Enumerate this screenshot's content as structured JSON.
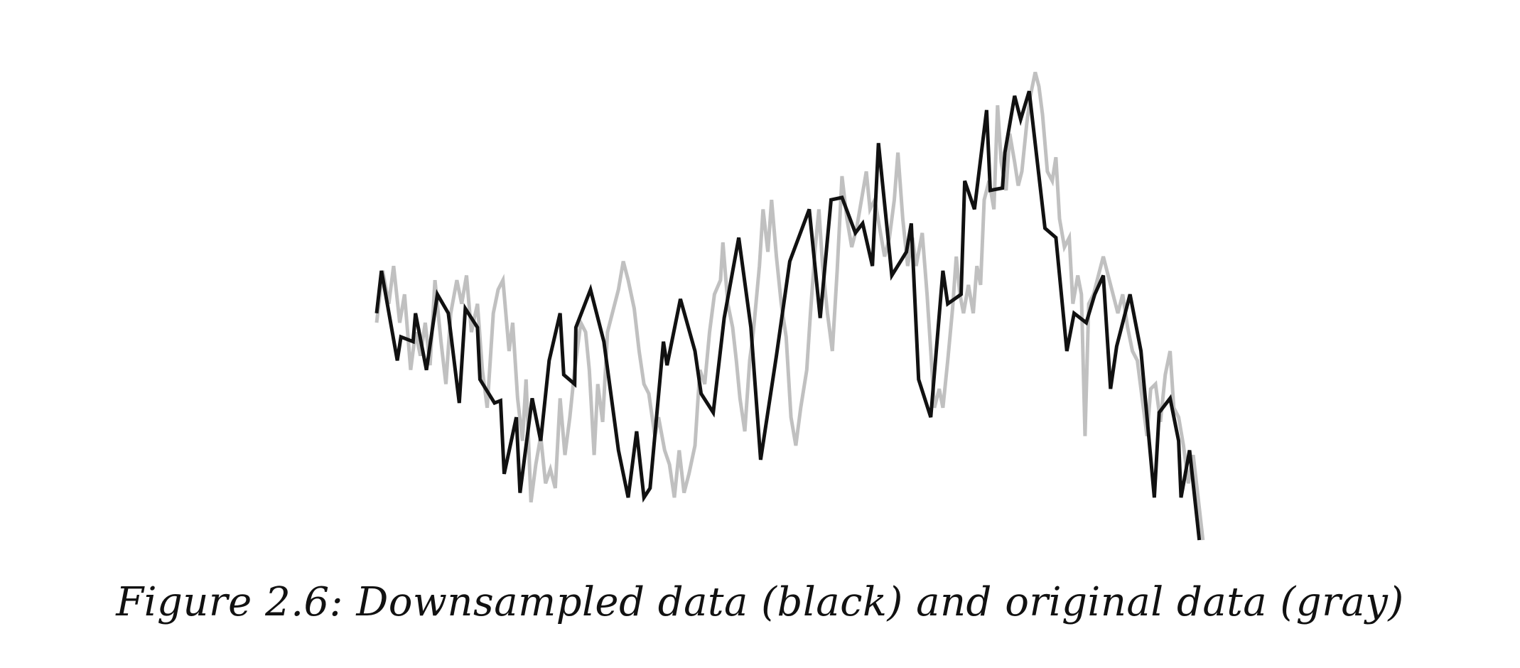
{
  "caption": "Figure 2.6: Downsampled data (black) and original data (gray)",
  "chart_data": {
    "type": "line",
    "title": "",
    "xlabel": "",
    "ylabel": "",
    "axes_visible": false,
    "grid": false,
    "legend": "none",
    "xlim": [
      0,
      100
    ],
    "ylim": [
      0,
      100
    ],
    "series": [
      {
        "color": "#c0c0c0",
        "width": 5,
        "style": "original",
        "points": [
          [
            0.0,
            46.0
          ],
          [
            0.5,
            57.0
          ],
          [
            1.0,
            50.0
          ],
          [
            1.4,
            58.0
          ],
          [
            1.9,
            46.0
          ],
          [
            2.3,
            52.0
          ],
          [
            2.8,
            36.0
          ],
          [
            3.2,
            44.0
          ],
          [
            3.6,
            39.0
          ],
          [
            4.0,
            46.0
          ],
          [
            4.4,
            37.0
          ],
          [
            4.8,
            55.0
          ],
          [
            5.3,
            42.0
          ],
          [
            5.7,
            33.0
          ],
          [
            6.1,
            48.0
          ],
          [
            6.6,
            55.0
          ],
          [
            7.0,
            50.0
          ],
          [
            7.4,
            56.0
          ],
          [
            7.8,
            44.0
          ],
          [
            8.3,
            50.0
          ],
          [
            8.7,
            36.0
          ],
          [
            9.1,
            28.0
          ],
          [
            9.6,
            48.0
          ],
          [
            10.0,
            53.0
          ],
          [
            10.4,
            55.0
          ],
          [
            10.9,
            40.0
          ],
          [
            11.2,
            46.0
          ],
          [
            11.6,
            30.0
          ],
          [
            12.0,
            21.0
          ],
          [
            12.3,
            34.0
          ],
          [
            12.7,
            8.0
          ],
          [
            13.1,
            16.0
          ],
          [
            13.5,
            22.0
          ],
          [
            13.9,
            12.0
          ],
          [
            14.3,
            15.0
          ],
          [
            14.7,
            11.0
          ],
          [
            15.1,
            30.0
          ],
          [
            15.5,
            18.0
          ],
          [
            15.9,
            26.0
          ],
          [
            16.3,
            36.0
          ],
          [
            16.8,
            46.0
          ],
          [
            17.2,
            44.0
          ],
          [
            17.5,
            36.0
          ],
          [
            17.9,
            18.0
          ],
          [
            18.2,
            33.0
          ],
          [
            18.6,
            25.0
          ],
          [
            19.0,
            44.0
          ],
          [
            19.4,
            48.0
          ],
          [
            19.9,
            53.0
          ],
          [
            20.3,
            59.0
          ],
          [
            20.7,
            55.0
          ],
          [
            21.2,
            49.0
          ],
          [
            21.6,
            40.0
          ],
          [
            22.0,
            33.0
          ],
          [
            22.4,
            31.0
          ],
          [
            22.9,
            22.0
          ],
          [
            23.2,
            26.0
          ],
          [
            23.7,
            19.0
          ],
          [
            24.1,
            16.0
          ],
          [
            24.5,
            9.0
          ],
          [
            24.9,
            19.0
          ],
          [
            25.3,
            10.0
          ],
          [
            25.7,
            14.0
          ],
          [
            26.2,
            20.0
          ],
          [
            26.6,
            36.0
          ],
          [
            27.0,
            33.0
          ],
          [
            27.4,
            44.0
          ],
          [
            27.8,
            52.0
          ],
          [
            28.3,
            55.0
          ],
          [
            28.5,
            63.0
          ],
          [
            28.9,
            50.0
          ],
          [
            29.3,
            45.0
          ],
          [
            29.6,
            38.0
          ],
          [
            29.9,
            30.0
          ],
          [
            30.3,
            23.0
          ],
          [
            30.7,
            38.0
          ],
          [
            31.0,
            44.0
          ],
          [
            31.5,
            58.0
          ],
          [
            31.8,
            70.0
          ],
          [
            32.2,
            61.0
          ],
          [
            32.5,
            72.0
          ],
          [
            32.9,
            60.0
          ],
          [
            33.3,
            50.0
          ],
          [
            33.7,
            43.0
          ],
          [
            34.1,
            26.0
          ],
          [
            34.5,
            20.0
          ],
          [
            34.9,
            28.0
          ],
          [
            35.4,
            36.0
          ],
          [
            35.7,
            48.0
          ],
          [
            36.1,
            62.0
          ],
          [
            36.4,
            70.0
          ],
          [
            36.7,
            58.0
          ],
          [
            37.1,
            48.0
          ],
          [
            37.5,
            40.0
          ],
          [
            37.9,
            57.0
          ],
          [
            38.3,
            77.0
          ],
          [
            38.7,
            68.0
          ],
          [
            39.1,
            62.0
          ],
          [
            39.5,
            66.0
          ],
          [
            39.9,
            72.0
          ],
          [
            40.3,
            78.0
          ],
          [
            40.6,
            70.0
          ],
          [
            41.0,
            72.0
          ],
          [
            41.4,
            66.0
          ],
          [
            41.8,
            60.0
          ],
          [
            42.2,
            64.0
          ],
          [
            42.6,
            72.0
          ],
          [
            42.9,
            82.0
          ],
          [
            43.3,
            68.0
          ],
          [
            43.7,
            58.0
          ],
          [
            44.1,
            64.0
          ],
          [
            44.4,
            58.0
          ],
          [
            44.9,
            65.0
          ],
          [
            45.3,
            52.0
          ],
          [
            45.6,
            40.0
          ],
          [
            45.9,
            28.0
          ],
          [
            46.3,
            32.0
          ],
          [
            46.6,
            28.0
          ],
          [
            47.0,
            38.0
          ],
          [
            47.4,
            49.0
          ],
          [
            47.7,
            60.0
          ],
          [
            48.0,
            52.0
          ],
          [
            48.3,
            48.0
          ],
          [
            48.7,
            54.0
          ],
          [
            49.1,
            48.0
          ],
          [
            49.4,
            58.0
          ],
          [
            49.7,
            54.0
          ],
          [
            50.0,
            72.0
          ],
          [
            50.4,
            76.0
          ],
          [
            50.8,
            70.0
          ],
          [
            51.1,
            92.0
          ],
          [
            51.4,
            80.0
          ],
          [
            51.8,
            74.0
          ],
          [
            52.1,
            86.0
          ],
          [
            52.5,
            80.0
          ],
          [
            52.8,
            75.0
          ],
          [
            53.1,
            78.0
          ],
          [
            53.5,
            88.0
          ],
          [
            53.8,
            94.0
          ],
          [
            54.2,
            99.0
          ],
          [
            54.5,
            96.0
          ],
          [
            54.8,
            90.0
          ],
          [
            55.2,
            78.0
          ],
          [
            55.6,
            76.0
          ],
          [
            55.9,
            81.0
          ],
          [
            56.2,
            68.0
          ],
          [
            56.6,
            62.0
          ],
          [
            57.0,
            64.0
          ],
          [
            57.3,
            50.0
          ],
          [
            57.7,
            56.0
          ],
          [
            58.0,
            52.0
          ],
          [
            58.3,
            22.0
          ],
          [
            58.6,
            50.0
          ],
          [
            59.0,
            52.0
          ],
          [
            59.4,
            56.0
          ],
          [
            59.8,
            60.0
          ],
          [
            60.2,
            56.0
          ],
          [
            60.6,
            52.0
          ],
          [
            61.0,
            48.0
          ],
          [
            61.4,
            52.0
          ],
          [
            61.8,
            45.0
          ],
          [
            62.2,
            40.0
          ],
          [
            62.6,
            38.0
          ],
          [
            63.0,
            30.0
          ],
          [
            63.4,
            22.0
          ],
          [
            63.7,
            32.0
          ],
          [
            64.1,
            33.0
          ],
          [
            64.5,
            25.0
          ],
          [
            64.9,
            35.0
          ],
          [
            65.3,
            40.0
          ],
          [
            65.6,
            28.0
          ],
          [
            66.0,
            26.0
          ],
          [
            66.4,
            20.0
          ],
          [
            66.8,
            12.0
          ],
          [
            67.2,
            18.0
          ],
          [
            67.6,
            9.0
          ],
          [
            68.0,
            0.0
          ]
        ]
      },
      {
        "color": "#111111",
        "width": 5,
        "style": "downsampled",
        "points": [
          [
            0.0,
            48.0
          ],
          [
            0.4,
            57.0
          ],
          [
            1.7,
            38.0
          ],
          [
            2.0,
            43.0
          ],
          [
            3.0,
            42.0
          ],
          [
            3.2,
            48.0
          ],
          [
            4.1,
            36.0
          ],
          [
            5.0,
            52.0
          ],
          [
            5.9,
            48.0
          ],
          [
            6.8,
            29.0
          ],
          [
            7.3,
            49.0
          ],
          [
            8.3,
            45.0
          ],
          [
            8.5,
            34.0
          ],
          [
            9.7,
            29.0
          ],
          [
            10.2,
            29.5
          ],
          [
            10.5,
            14.0
          ],
          [
            11.5,
            26.0
          ],
          [
            11.8,
            10.0
          ],
          [
            12.8,
            30.0
          ],
          [
            13.5,
            21.0
          ],
          [
            14.2,
            38.0
          ],
          [
            15.1,
            48.0
          ],
          [
            15.4,
            35.0
          ],
          [
            16.3,
            33.0
          ],
          [
            16.4,
            45.0
          ],
          [
            17.6,
            53.0
          ],
          [
            18.7,
            42.0
          ],
          [
            19.9,
            19.0
          ],
          [
            20.7,
            9.0
          ],
          [
            21.4,
            23.0
          ],
          [
            22.0,
            9.0
          ],
          [
            22.5,
            11.0
          ],
          [
            23.6,
            42.0
          ],
          [
            23.9,
            37.0
          ],
          [
            25.0,
            51.0
          ],
          [
            26.2,
            40.0
          ],
          [
            26.7,
            31.0
          ],
          [
            27.7,
            27.0
          ],
          [
            28.6,
            47.0
          ],
          [
            29.8,
            64.0
          ],
          [
            30.8,
            45.0
          ],
          [
            31.6,
            17.0
          ],
          [
            32.9,
            39.0
          ],
          [
            34.0,
            59.0
          ],
          [
            35.6,
            70.0
          ],
          [
            36.5,
            47.0
          ],
          [
            37.4,
            72.0
          ],
          [
            38.3,
            72.5
          ],
          [
            39.4,
            65.0
          ],
          [
            40.0,
            67.0
          ],
          [
            40.8,
            58.0
          ],
          [
            41.3,
            84.0
          ],
          [
            42.4,
            56.0
          ],
          [
            43.6,
            61.0
          ],
          [
            44.0,
            67.0
          ],
          [
            44.6,
            34.0
          ],
          [
            45.6,
            26.0
          ],
          [
            46.6,
            57.0
          ],
          [
            47.0,
            50.0
          ],
          [
            48.1,
            52.0
          ],
          [
            48.4,
            76.0
          ],
          [
            49.2,
            70.0
          ],
          [
            50.2,
            91.0
          ],
          [
            50.5,
            74.0
          ],
          [
            51.5,
            74.5
          ],
          [
            51.7,
            82.0
          ],
          [
            52.5,
            94.0
          ],
          [
            53.0,
            89.0
          ],
          [
            53.7,
            95.0
          ],
          [
            55.0,
            66.0
          ],
          [
            55.9,
            64.0
          ],
          [
            56.8,
            40.0
          ],
          [
            57.4,
            48.0
          ],
          [
            58.4,
            46.0
          ],
          [
            59.1,
            52.0
          ],
          [
            59.8,
            56.0
          ],
          [
            60.4,
            32.0
          ],
          [
            60.9,
            41.0
          ],
          [
            62.0,
            52.0
          ],
          [
            62.9,
            40.0
          ],
          [
            64.0,
            9.0
          ],
          [
            64.4,
            27.0
          ],
          [
            65.3,
            30.0
          ],
          [
            66.0,
            21.0
          ],
          [
            66.2,
            9.0
          ],
          [
            66.9,
            19.0
          ],
          [
            67.7,
            0.0
          ]
        ]
      }
    ]
  }
}
